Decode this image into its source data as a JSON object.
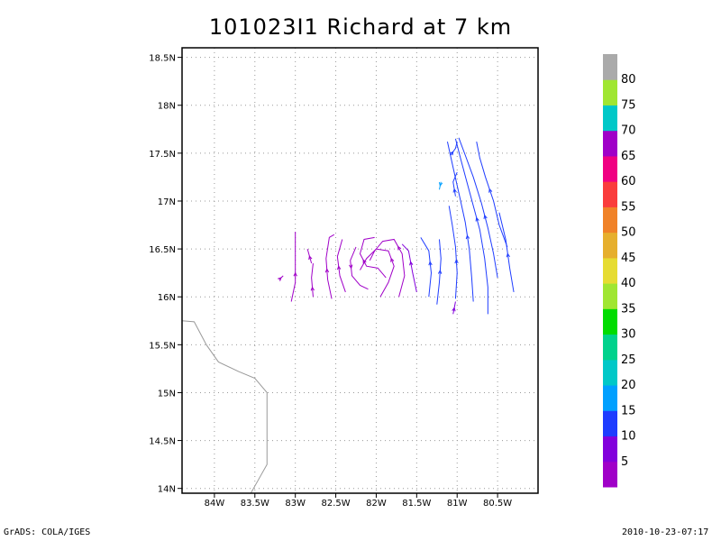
{
  "title": "101023I1  Richard at 7 km",
  "footer_left": "GrADS: COLA/IGES",
  "footer_right": "2010-10-23-07:17",
  "chart_data": {
    "type": "streamline",
    "xlim": [
      -84.4,
      -80.0
    ],
    "ylim": [
      13.95,
      18.6
    ],
    "x_ticks": [
      {
        "value": -84.0,
        "label": "84W"
      },
      {
        "value": -83.5,
        "label": "83.5W"
      },
      {
        "value": -83.0,
        "label": "83W"
      },
      {
        "value": -82.5,
        "label": "82.5W"
      },
      {
        "value": -82.0,
        "label": "82W"
      },
      {
        "value": -81.5,
        "label": "81.5W"
      },
      {
        "value": -81.0,
        "label": "81W"
      },
      {
        "value": -80.5,
        "label": "80.5W"
      }
    ],
    "y_ticks": [
      {
        "value": 14.0,
        "label": "14N"
      },
      {
        "value": 14.5,
        "label": "14.5N"
      },
      {
        "value": 15.0,
        "label": "15N"
      },
      {
        "value": 15.5,
        "label": "15.5N"
      },
      {
        "value": 16.0,
        "label": "16N"
      },
      {
        "value": 16.5,
        "label": "16.5N"
      },
      {
        "value": 17.0,
        "label": "17N"
      },
      {
        "value": 17.5,
        "label": "17.5N"
      },
      {
        "value": 18.0,
        "label": "18N"
      },
      {
        "value": 18.5,
        "label": "18.5N"
      }
    ],
    "grid": true,
    "coastline": [
      [
        -84.4,
        15.75
      ],
      [
        -84.25,
        15.74
      ],
      [
        -84.1,
        15.5
      ],
      [
        -83.95,
        15.32
      ],
      [
        -83.7,
        15.22
      ],
      [
        -83.5,
        15.15
      ],
      [
        -83.35,
        15.0
      ],
      [
        -83.35,
        14.9
      ],
      [
        -83.35,
        14.8
      ],
      [
        -83.35,
        14.6
      ],
      [
        -83.35,
        14.4
      ],
      [
        -83.35,
        14.25
      ],
      [
        -83.45,
        14.1
      ],
      [
        -83.55,
        13.95
      ]
    ],
    "colorbar": {
      "labels": [
        "5",
        "10",
        "15",
        "20",
        "25",
        "30",
        "35",
        "40",
        "45",
        "50",
        "55",
        "60",
        "65",
        "70",
        "75",
        "80"
      ],
      "colors": [
        "#a000c8",
        "#8200dc",
        "#1e3cff",
        "#00a0ff",
        "#00c8c8",
        "#00d28c",
        "#00dc00",
        "#a0e632",
        "#e6dc32",
        "#e6af2d",
        "#f08228",
        "#fa3c3c",
        "#f00082",
        "#a000c8",
        "#00c8c8",
        "#a0e632",
        "#aaaaaa"
      ]
    },
    "streamlines": [
      {
        "color": "#1e3cff",
        "points": [
          [
            -80.38,
            16.52
          ],
          [
            -80.48,
            16.75
          ],
          [
            -80.55,
            17.0
          ],
          [
            -80.65,
            17.25
          ],
          [
            -80.72,
            17.45
          ],
          [
            -80.76,
            17.62
          ]
        ]
      },
      {
        "color": "#1e3cff",
        "points": [
          [
            -80.5,
            16.2
          ],
          [
            -80.55,
            16.45
          ],
          [
            -80.62,
            16.72
          ],
          [
            -80.7,
            16.98
          ],
          [
            -80.8,
            17.25
          ],
          [
            -80.9,
            17.48
          ],
          [
            -80.98,
            17.66
          ]
        ]
      },
      {
        "color": "#1e3cff",
        "points": [
          [
            -80.62,
            15.82
          ],
          [
            -80.62,
            16.1
          ],
          [
            -80.66,
            16.4
          ],
          [
            -80.72,
            16.7
          ],
          [
            -80.8,
            16.95
          ],
          [
            -80.88,
            17.2
          ],
          [
            -80.95,
            17.42
          ],
          [
            -81.02,
            17.65
          ]
        ]
      },
      {
        "color": "#1e3cff",
        "points": [
          [
            -80.8,
            15.95
          ],
          [
            -80.82,
            16.2
          ],
          [
            -80.85,
            16.5
          ],
          [
            -80.9,
            16.78
          ],
          [
            -80.97,
            17.05
          ],
          [
            -81.05,
            17.35
          ],
          [
            -81.12,
            17.62
          ]
        ]
      },
      {
        "color": "#1e3cff",
        "points": [
          [
            -81.02,
            15.98
          ],
          [
            -81.0,
            16.25
          ],
          [
            -81.02,
            16.52
          ],
          [
            -81.06,
            16.75
          ],
          [
            -81.1,
            16.95
          ]
        ]
      },
      {
        "color": "#1e3cff",
        "points": [
          [
            -81.25,
            15.92
          ],
          [
            -81.22,
            16.15
          ],
          [
            -81.2,
            16.4
          ],
          [
            -81.22,
            16.6
          ]
        ]
      },
      {
        "color": "#1e3cff",
        "points": [
          [
            -81.35,
            16.0
          ],
          [
            -81.32,
            16.25
          ],
          [
            -81.35,
            16.48
          ],
          [
            -81.45,
            16.62
          ]
        ]
      },
      {
        "color": "#1e3cff",
        "points": [
          [
            -80.3,
            16.05
          ],
          [
            -80.35,
            16.3
          ],
          [
            -80.4,
            16.6
          ],
          [
            -80.48,
            16.88
          ]
        ]
      },
      {
        "color": "#1e3cff",
        "points": [
          [
            -81.02,
            17.05
          ],
          [
            -81.05,
            17.2
          ],
          [
            -81.0,
            17.3
          ]
        ]
      },
      {
        "color": "#1e3cff",
        "points": [
          [
            -81.08,
            17.48
          ],
          [
            -81.02,
            17.55
          ],
          [
            -81.0,
            17.62
          ]
        ]
      },
      {
        "color": "#00a0ff",
        "points": [
          [
            -81.2,
            17.2
          ],
          [
            -81.22,
            17.12
          ]
        ]
      },
      {
        "color": "#8200dc",
        "points": [
          [
            -81.5,
            16.05
          ],
          [
            -81.55,
            16.25
          ],
          [
            -81.6,
            16.48
          ],
          [
            -81.68,
            16.55
          ]
        ]
      },
      {
        "color": "#8200dc",
        "points": [
          [
            -81.05,
            15.82
          ],
          [
            -81.02,
            15.95
          ]
        ]
      },
      {
        "color": "#a000c8",
        "points": [
          [
            -81.72,
            16.0
          ],
          [
            -81.65,
            16.22
          ],
          [
            -81.68,
            16.45
          ],
          [
            -81.78,
            16.6
          ],
          [
            -81.92,
            16.58
          ],
          [
            -82.02,
            16.48
          ],
          [
            -82.08,
            16.38
          ]
        ]
      },
      {
        "color": "#a000c8",
        "points": [
          [
            -81.95,
            16.0
          ],
          [
            -81.85,
            16.15
          ],
          [
            -81.78,
            16.32
          ],
          [
            -81.85,
            16.48
          ],
          [
            -82.0,
            16.5
          ],
          [
            -82.12,
            16.4
          ],
          [
            -82.2,
            16.28
          ]
        ]
      },
      {
        "color": "#a000c8",
        "points": [
          [
            -81.88,
            16.2
          ],
          [
            -81.98,
            16.3
          ],
          [
            -82.12,
            16.32
          ],
          [
            -82.2,
            16.45
          ],
          [
            -82.15,
            16.6
          ],
          [
            -82.02,
            16.62
          ]
        ]
      },
      {
        "color": "#a000c8",
        "points": [
          [
            -82.25,
            16.52
          ],
          [
            -82.32,
            16.38
          ],
          [
            -82.3,
            16.22
          ],
          [
            -82.2,
            16.12
          ],
          [
            -82.1,
            16.08
          ]
        ]
      },
      {
        "color": "#a000c8",
        "points": [
          [
            -82.38,
            16.05
          ],
          [
            -82.45,
            16.22
          ],
          [
            -82.48,
            16.42
          ],
          [
            -82.42,
            16.6
          ]
        ]
      },
      {
        "color": "#a000c8",
        "points": [
          [
            -82.55,
            15.98
          ],
          [
            -82.6,
            16.18
          ],
          [
            -82.62,
            16.4
          ],
          [
            -82.58,
            16.62
          ],
          [
            -82.52,
            16.65
          ]
        ]
      },
      {
        "color": "#a000c8",
        "points": [
          [
            -82.78,
            16.0
          ],
          [
            -82.8,
            16.2
          ],
          [
            -82.78,
            16.35
          ]
        ]
      },
      {
        "color": "#a000c8",
        "points": [
          [
            -83.05,
            15.95
          ],
          [
            -83.0,
            16.15
          ],
          [
            -83.0,
            16.35
          ],
          [
            -83.0,
            16.55
          ],
          [
            -83.0,
            16.68
          ]
        ]
      },
      {
        "color": "#a000c8",
        "points": [
          [
            -83.2,
            16.18
          ],
          [
            -83.15,
            16.22
          ]
        ]
      },
      {
        "color": "#a000c8",
        "points": [
          [
            -82.8,
            16.35
          ],
          [
            -82.85,
            16.5
          ]
        ]
      }
    ]
  }
}
